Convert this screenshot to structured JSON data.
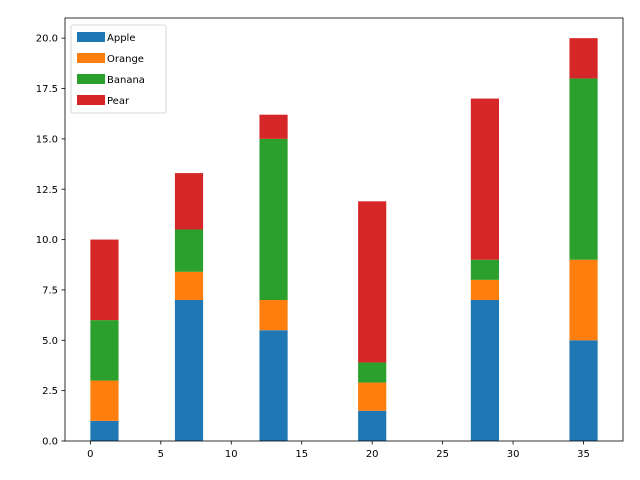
{
  "chart_data": {
    "type": "bar",
    "stacked": true,
    "x": [
      1,
      7,
      13,
      20,
      28,
      35
    ],
    "series": [
      {
        "name": "Apple",
        "color": "#1f77b4",
        "values": [
          1.0,
          7.0,
          5.5,
          1.5,
          7.0,
          5.0
        ]
      },
      {
        "name": "Orange",
        "color": "#ff7f0e",
        "values": [
          2.0,
          1.4,
          1.5,
          1.4,
          1.0,
          4.0
        ]
      },
      {
        "name": "Banana",
        "color": "#2ca02c",
        "values": [
          3.0,
          2.1,
          8.0,
          1.0,
          1.0,
          9.0
        ]
      },
      {
        "name": "Pear",
        "color": "#d62728",
        "values": [
          4.0,
          2.8,
          1.2,
          8.0,
          8.0,
          2.0
        ]
      }
    ],
    "bar_width": 2,
    "xlim": [
      -1.8,
      37.8
    ],
    "ylim": [
      0,
      21
    ],
    "xticks": [
      0,
      5,
      10,
      15,
      20,
      25,
      30,
      35
    ],
    "xtick_labels": [
      "0",
      "5",
      "10",
      "15",
      "20",
      "25",
      "30",
      "35"
    ],
    "yticks": [
      0,
      2.5,
      5,
      7.5,
      10,
      12.5,
      15,
      17.5,
      20
    ],
    "ytick_labels": [
      "0.0",
      "2.5",
      "5.0",
      "7.5",
      "10.0",
      "12.5",
      "15.0",
      "17.5",
      "20.0"
    ],
    "grid": false,
    "legend_position": "top-left",
    "title": "",
    "xlabel": "",
    "ylabel": ""
  }
}
